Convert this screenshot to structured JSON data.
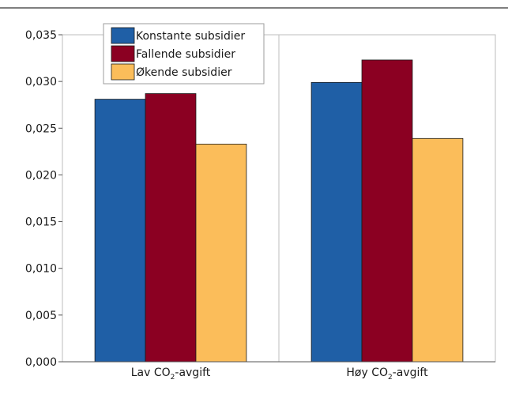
{
  "chart_data": {
    "type": "bar",
    "categories": [
      {
        "pre": "Lav CO",
        "sub": "2",
        "post": "-avgift"
      },
      {
        "pre": "Høy CO",
        "sub": "2",
        "post": "-avgift"
      }
    ],
    "series": [
      {
        "name": "Konstante subsidier",
        "color": "#1f5fa6",
        "values": [
          0.0281,
          0.0299
        ]
      },
      {
        "name": "Fallende subsidier",
        "color": "#8b0022",
        "values": [
          0.0287,
          0.0323
        ]
      },
      {
        "name": "Økende subsidier",
        "color": "#fbbd5a",
        "values": [
          0.0233,
          0.0239
        ]
      }
    ],
    "yticks": [
      "0,000",
      "0,005",
      "0,010",
      "0,015",
      "0,020",
      "0,025",
      "0,030",
      "0,035"
    ],
    "ylim": [
      0,
      0.035
    ],
    "legend_position": "top-left",
    "grid": false,
    "title": "",
    "xlabel": "",
    "ylabel": ""
  }
}
